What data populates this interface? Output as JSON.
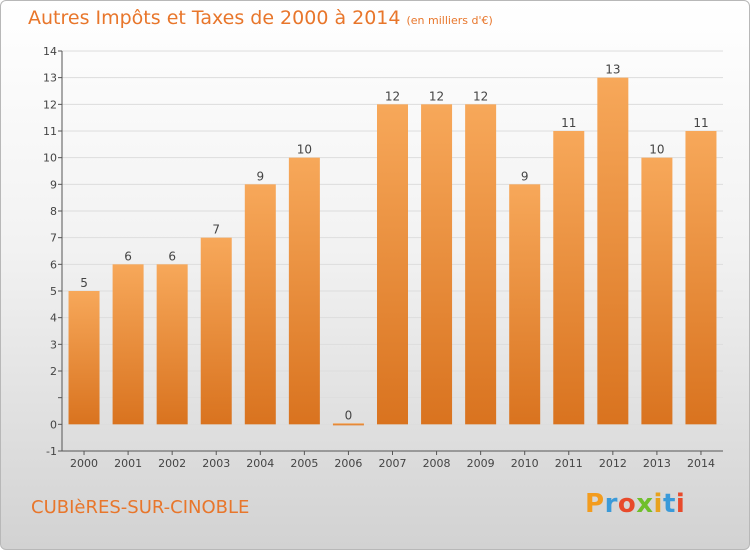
{
  "title": "Autres Impôts et Taxes de 2000 à 2014",
  "subtitle": "(en milliers d'€)",
  "commune": "CUBIèRES-SUR-CINOBLE",
  "logo": {
    "letters": [
      "P",
      "r",
      "o",
      "x",
      "i",
      "t",
      "i"
    ],
    "colors": [
      "#f39c1e",
      "#3a9ad9",
      "#e84a2b",
      "#6fbf2b",
      "#e8a21e",
      "#3a9ad9",
      "#e84a2b"
    ]
  },
  "colors": {
    "bar_light": "#f7a85a",
    "bar_dark": "#d9731f",
    "title": "#e8762b",
    "grid": "#dddddd",
    "axis": "#555555"
  },
  "chart_data": {
    "type": "bar",
    "categories": [
      "2000",
      "2001",
      "2002",
      "2003",
      "2004",
      "2005",
      "2006",
      "2007",
      "2008",
      "2009",
      "2010",
      "2011",
      "2012",
      "2013",
      "2014"
    ],
    "values": [
      5,
      6,
      6,
      7,
      9,
      10,
      0,
      12,
      12,
      12,
      9,
      11,
      13,
      10,
      11
    ],
    "data_labels": [
      "5",
      "6",
      "6",
      "7",
      "9",
      "10",
      "0",
      "12",
      "12",
      "12",
      "9",
      "11",
      "13",
      "10",
      "11"
    ],
    "y_ticks": [
      -1,
      0,
      1,
      2,
      3,
      4,
      5,
      6,
      7,
      8,
      9,
      10,
      11,
      12,
      13,
      14
    ],
    "y_tick_labels": [
      "-1",
      "0",
      "",
      "2",
      "3",
      "4",
      "5",
      "6",
      "7",
      "8",
      "9",
      "10",
      "11",
      "12",
      "13",
      "14"
    ],
    "ylim": [
      -1,
      14
    ],
    "grid": true,
    "legend": "none",
    "xlabel": "",
    "ylabel": ""
  }
}
